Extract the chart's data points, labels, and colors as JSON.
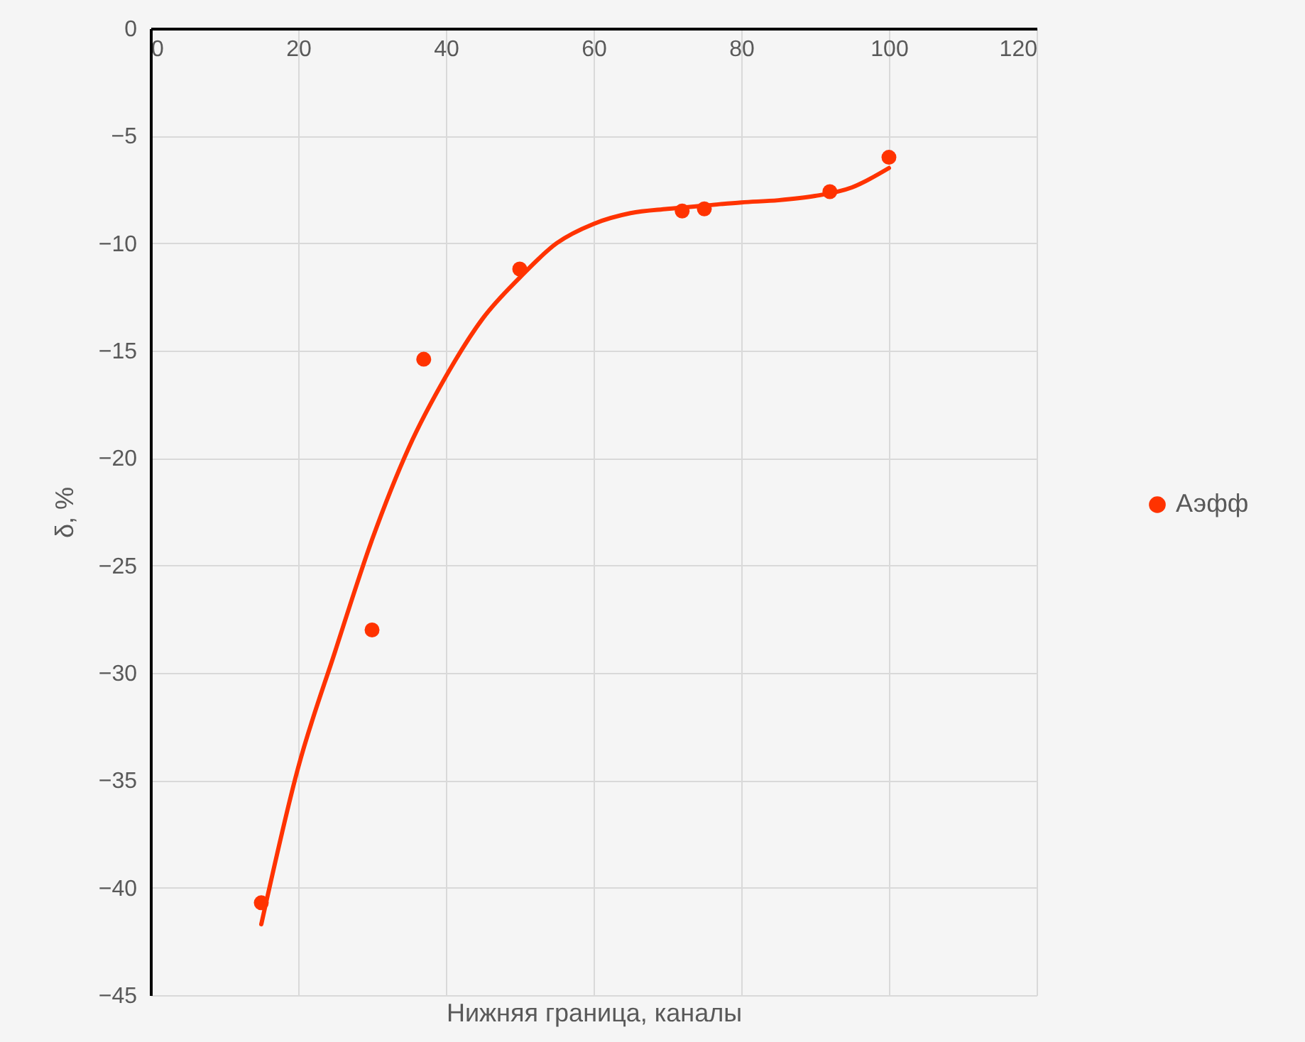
{
  "chart_data": {
    "type": "scatter",
    "xlabel": "Нижняя граница, каналы",
    "ylabel": "δ, %",
    "xlim": [
      0,
      120
    ],
    "xticks": [
      0,
      20,
      40,
      60,
      80,
      100,
      120
    ],
    "ylim": [
      -45,
      0
    ],
    "yticks": [
      -45,
      -40,
      -35,
      -30,
      -25,
      -20,
      -15,
      -10,
      -5,
      0
    ],
    "grid": true,
    "legend": "right",
    "series": [
      {
        "name": "Аэфф",
        "marker": "circle",
        "color": "#ff3300",
        "x": [
          15,
          30,
          37,
          50,
          72,
          75,
          92,
          100
        ],
        "values": [
          -40.7,
          -28,
          -15.4,
          -11.2,
          -8.5,
          -8.4,
          -7.6,
          -6
        ]
      },
      {
        "type": "line",
        "color": "#ff3300",
        "line_style": "solid",
        "x": [
          15,
          20,
          25,
          30,
          35,
          40,
          45,
          50,
          55,
          60,
          65,
          70,
          75,
          80,
          85,
          90,
          95,
          100
        ],
        "values": [
          -41.7,
          -34.4,
          -29,
          -23.8,
          -19.5,
          -16.2,
          -13.5,
          -11.6,
          -10,
          -9.1,
          -8.6,
          -8.4,
          -8.25,
          -8.1,
          -8,
          -7.8,
          -7.4,
          -6.5
        ]
      }
    ]
  }
}
